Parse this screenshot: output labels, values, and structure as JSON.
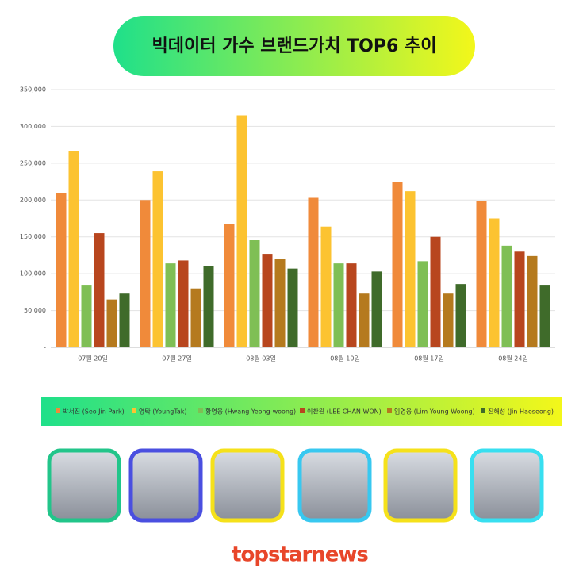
{
  "chart_data": {
    "type": "bar",
    "title": "빅데이터 가수 브랜드가치 TOP6 추이",
    "categories": [
      "07월 20일",
      "07월 27일",
      "08월 03일",
      "08월 10일",
      "08월 17일",
      "08월 24일"
    ],
    "series": [
      {
        "name": "박서진 (Seo Jin Park)",
        "color": "#f08a3a",
        "values": [
          210000,
          200000,
          167000,
          203000,
          225000,
          199000
        ]
      },
      {
        "name": "영탁 (YoungTak)",
        "color": "#fcc331",
        "values": [
          267000,
          239000,
          315000,
          164000,
          212000,
          175000
        ]
      },
      {
        "name": "황영웅 (Hwang Yeong-woong)",
        "color": "#7fbf55",
        "values": [
          85000,
          114000,
          146000,
          114000,
          117000,
          138000
        ]
      },
      {
        "name": "이찬원 (LEE CHAN WON)",
        "color": "#b8461e",
        "values": [
          155000,
          118000,
          127000,
          114000,
          150000,
          130000
        ]
      },
      {
        "name": "임영웅 (Lim Young Woong)",
        "color": "#b57a1e",
        "values": [
          65000,
          80000,
          120000,
          73000,
          73000,
          124000
        ]
      },
      {
        "name": "진해성 (Jin Haeseong)",
        "color": "#3f6b2a",
        "values": [
          73000,
          110000,
          107000,
          103000,
          86000,
          85000
        ]
      }
    ],
    "ylim": [
      0,
      350000
    ],
    "yticks": [
      {
        "value": 0,
        "label": "-"
      },
      {
        "value": 50000,
        "label": "50,000"
      },
      {
        "value": 100000,
        "label": "100,000"
      },
      {
        "value": 150000,
        "label": "150,000"
      },
      {
        "value": 200000,
        "label": "200,000"
      },
      {
        "value": 250000,
        "label": "250,000"
      },
      {
        "value": 300000,
        "label": "300,000"
      },
      {
        "value": 350000,
        "label": "350,000"
      }
    ],
    "grid": true,
    "footer": "topstarnews"
  }
}
